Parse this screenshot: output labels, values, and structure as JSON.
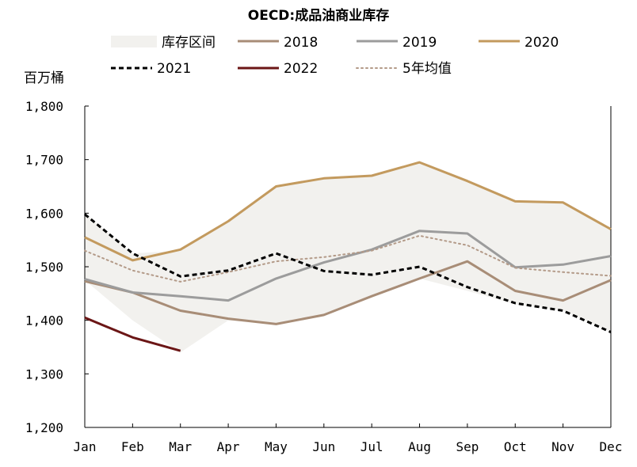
{
  "chart_data": {
    "type": "line",
    "title": "OECD:成品油商业库存",
    "ylabel": "百万桶",
    "xlabel": "",
    "categories": [
      "Jan",
      "Feb",
      "Mar",
      "Apr",
      "May",
      "Jun",
      "Jul",
      "Aug",
      "Sep",
      "Oct",
      "Nov",
      "Dec"
    ],
    "yticks": [
      "1,200",
      "1,300",
      "1,400",
      "1,500",
      "1,600",
      "1,700",
      "1,800"
    ],
    "ylim": [
      1200,
      1800
    ],
    "band": {
      "name": "库存区间",
      "color": "#f2f1ee",
      "upper": [
        1600,
        1525,
        1530,
        1585,
        1650,
        1665,
        1670,
        1695,
        1660,
        1622,
        1620,
        1570
      ],
      "lower": [
        1475,
        1400,
        1340,
        1400,
        1393,
        1410,
        1445,
        1478,
        1455,
        1430,
        1418,
        1378
      ]
    },
    "series": [
      {
        "name": "2018",
        "color": "#a88d77",
        "style": "solid",
        "values": [
          1473,
          1452,
          1418,
          1403,
          1393,
          1410,
          1445,
          1478,
          1510,
          1455,
          1437,
          1475
        ]
      },
      {
        "name": "2019",
        "color": "#9c9c9c",
        "style": "solid",
        "values": [
          1477,
          1452,
          1445,
          1437,
          1478,
          1508,
          1532,
          1567,
          1562,
          1499,
          1504,
          1520
        ]
      },
      {
        "name": "2020",
        "color": "#c39a5e",
        "style": "solid",
        "values": [
          1555,
          1512,
          1532,
          1585,
          1650,
          1665,
          1670,
          1695,
          1660,
          1622,
          1620,
          1570
        ]
      },
      {
        "name": "2021",
        "color": "#000000",
        "style": "dashed",
        "values": [
          1598,
          1525,
          1482,
          1493,
          1525,
          1492,
          1485,
          1500,
          1462,
          1432,
          1418,
          1378
        ]
      },
      {
        "name": "2022",
        "color": "#6b1616",
        "style": "solid",
        "values": [
          1405,
          1368,
          1343,
          null,
          null,
          null,
          null,
          null,
          null,
          null,
          null,
          null
        ]
      },
      {
        "name": "5年均值",
        "color": "#b39a88",
        "style": "dotted",
        "values": [
          1530,
          1493,
          1472,
          1490,
          1510,
          1518,
          1530,
          1558,
          1540,
          1498,
          1490,
          1483
        ]
      }
    ]
  }
}
